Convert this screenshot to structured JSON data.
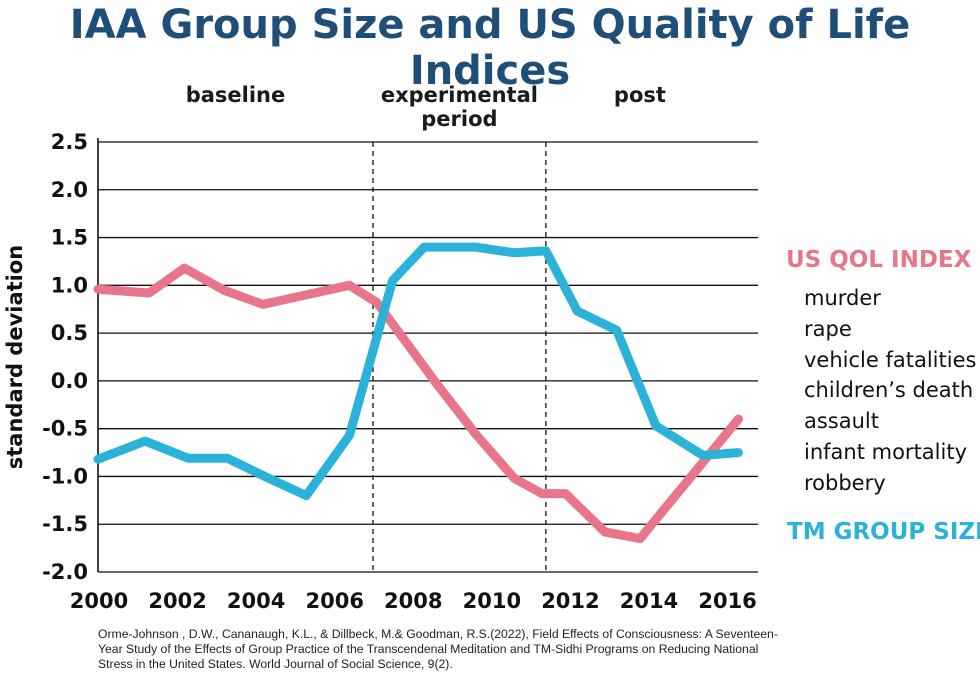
{
  "title": "IAA Group Size and US Quality of Life Indices",
  "chart_data": {
    "type": "line",
    "title": "IAA Group Size and US Quality of Life Indices",
    "xlabel": "",
    "ylabel": "standard deviation",
    "xlim": [
      2000,
      2016.8
    ],
    "ylim": [
      -2.0,
      2.5
    ],
    "x_ticks": [
      2000,
      2002,
      2004,
      2006,
      2008,
      2010,
      2012,
      2014,
      2016
    ],
    "y_ticks": [
      2.5,
      2.0,
      1.5,
      1.0,
      0.5,
      0.0,
      -0.5,
      -1.0,
      -1.5,
      -2.0
    ],
    "y_tick_labels": [
      "2.5",
      "2.0",
      "1.5",
      "1.0",
      "0.5",
      "0.0",
      "-0.5",
      "-1.0",
      "-1.5",
      "-2.0"
    ],
    "grid": "horizontal",
    "phases": [
      {
        "label_lines": [
          "baseline"
        ],
        "start": 2000,
        "end": 2007
      },
      {
        "label_lines": [
          "experimental",
          "period"
        ],
        "start": 2007,
        "end": 2011.4
      },
      {
        "label_lines": [
          "post"
        ],
        "start": 2011.4,
        "end": 2016.8
      }
    ],
    "dividers": [
      2007,
      2011.4
    ],
    "series": [
      {
        "name": "US QOL INDEX",
        "color": "#e8768a",
        "x": [
          2000,
          2001.3,
          2002.2,
          2003.2,
          2004.2,
          2005.3,
          2006.4,
          2007.1,
          2008.6,
          2009.6,
          2010.6,
          2011.3,
          2011.9,
          2012.9,
          2013.8,
          2016.3
        ],
        "values": [
          0.96,
          0.92,
          1.18,
          0.95,
          0.8,
          0.9,
          1.0,
          0.82,
          -0.02,
          -0.55,
          -1.02,
          -1.18,
          -1.18,
          -1.58,
          -1.65,
          -0.4
        ]
      },
      {
        "name": "TM GROUP SIZE",
        "color": "#2bb2d8",
        "x": [
          2000,
          2001.2,
          2002.3,
          2003.3,
          2004.3,
          2005.3,
          2006.4,
          2007.5,
          2008.3,
          2009.6,
          2010.6,
          2011.4,
          2012.2,
          2013.2,
          2014.2,
          2015.4,
          2016.3
        ],
        "values": [
          -0.82,
          -0.63,
          -0.81,
          -0.81,
          -1.01,
          -1.2,
          -0.57,
          1.05,
          1.4,
          1.4,
          1.34,
          1.36,
          0.73,
          0.53,
          -0.47,
          -0.78,
          -0.75
        ]
      }
    ]
  },
  "legend": {
    "qol_heading": "US QOL INDEX",
    "qol_color": "#e8768a",
    "qol_items": [
      "murder",
      "rape",
      "vehicle fatalities",
      "children’s death",
      "assault",
      "infant mortality",
      "robbery"
    ],
    "tm_heading": "TM GROUP SIZE",
    "tm_color": "#2bb2d8"
  },
  "citation": "Orme-Johnson , D.W., Cananaugh, K.L., & Dillbeck, M.& Goodman, R.S.(2022), Field Effects of Consciousness: A Seventeen-Year Study of the Effects of Group Practice of the Transcendenal Meditation and TM-Sidhi Programs on Reducing National Stress in the United States. World Journal of Social Science, 9(2)."
}
